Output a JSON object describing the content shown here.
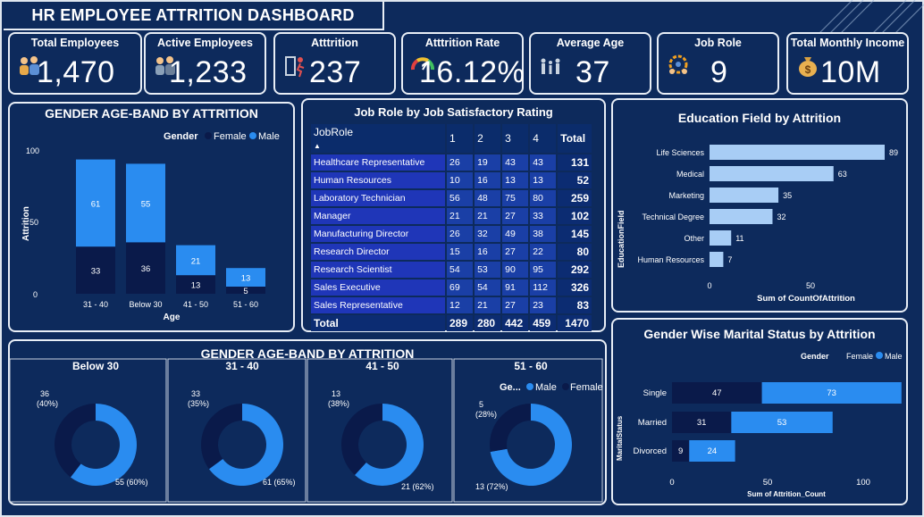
{
  "title": "HR EMPLOYEE ATTRITION DASHBOARD",
  "colors": {
    "background": "#0d2a5c",
    "female": "#0a1a4a",
    "male": "#2a8cf0",
    "edu_bar": "#a8cdf5"
  },
  "kpis": [
    {
      "label": "Total Employees",
      "value": "1,470",
      "icon": "people-icon"
    },
    {
      "label": "Active Employees",
      "value": "1,233",
      "icon": "people-icon"
    },
    {
      "label": "Atttrition",
      "value": "237",
      "icon": "exit-door-icon"
    },
    {
      "label": "Atttrition Rate",
      "value": "16.12%",
      "icon": "gauge-icon"
    },
    {
      "label": "Average Age",
      "value": "37",
      "icon": "family-icon"
    },
    {
      "label": "Job Role",
      "value": "9",
      "icon": "team-gear-icon"
    },
    {
      "label": "Total Monthly Income",
      "value": "10M",
      "icon": "money-bag-icon"
    }
  ],
  "age_band_chart": {
    "title": "GENDER AGE-BAND BY ATTRITION",
    "legend_title": "Gender",
    "legend": [
      "Female",
      "Male"
    ],
    "ylabel": "Attrition",
    "xlabel": "Age",
    "yticks": [
      "100",
      "50",
      "0"
    ]
  },
  "job_table": {
    "title": "Job Role by Job Satisfactory Rating",
    "headers": [
      "JobRole",
      "1",
      "2",
      "3",
      "4",
      "Total"
    ],
    "rows": [
      [
        "Healthcare Representative",
        "26",
        "19",
        "43",
        "43",
        "131"
      ],
      [
        "Human Resources",
        "10",
        "16",
        "13",
        "13",
        "52"
      ],
      [
        "Laboratory Technician",
        "56",
        "48",
        "75",
        "80",
        "259"
      ],
      [
        "Manager",
        "21",
        "21",
        "27",
        "33",
        "102"
      ],
      [
        "Manufacturing Director",
        "26",
        "32",
        "49",
        "38",
        "145"
      ],
      [
        "Research Director",
        "15",
        "16",
        "27",
        "22",
        "80"
      ],
      [
        "Research Scientist",
        "54",
        "53",
        "90",
        "95",
        "292"
      ],
      [
        "Sales Executive",
        "69",
        "54",
        "91",
        "112",
        "326"
      ],
      [
        "Sales Representative",
        "12",
        "21",
        "27",
        "23",
        "83"
      ]
    ],
    "total_row": [
      "Total",
      "289",
      "280",
      "442",
      "459",
      "1470"
    ]
  },
  "education_chart": {
    "title": "Education Field by Attrition",
    "ylabel": "EducationField",
    "xlabel": "Sum of CountOfAttrition",
    "xticks": [
      "0",
      "50"
    ]
  },
  "donut_section": {
    "title": "GENDER AGE-BAND BY ATTRITION",
    "legend_short": "Ge...",
    "legend": [
      "Male",
      "Female"
    ]
  },
  "marital_chart": {
    "title": "Gender Wise Marital Status by Attrition",
    "legend_title": "Gender",
    "legend": [
      "Female",
      "Male"
    ],
    "ylabel": "MaritalStatus",
    "xlabel": "Sum of Attrition_Count",
    "xticks": [
      "0",
      "50",
      "100"
    ]
  },
  "chart_data": [
    {
      "type": "bar",
      "title": "GENDER AGE-BAND BY ATTRITION",
      "stacked": true,
      "categories": [
        "31 - 40",
        "Below 30",
        "41 - 50",
        "51 - 60"
      ],
      "series": [
        {
          "name": "Female",
          "values": [
            33,
            36,
            13,
            5
          ]
        },
        {
          "name": "Male",
          "values": [
            61,
            55,
            21,
            13
          ]
        }
      ],
      "xlabel": "Age",
      "ylabel": "Attrition",
      "ylim": [
        0,
        100
      ]
    },
    {
      "type": "bar",
      "orientation": "horizontal",
      "title": "Education Field by Attrition",
      "categories": [
        "Life Sciences",
        "Medical",
        "Marketing",
        "Technical Degree",
        "Other",
        "Human Resources"
      ],
      "values": [
        89,
        63,
        35,
        32,
        11,
        7
      ],
      "xlabel": "Sum of CountOfAttrition",
      "ylabel": "EducationField",
      "xlim": [
        0,
        100
      ]
    },
    {
      "type": "pie",
      "title": "Below 30",
      "slices": [
        {
          "name": "Female",
          "value": 36,
          "label": "36",
          "pct": "(40%)"
        },
        {
          "name": "Male",
          "value": 55,
          "label": "55",
          "pct": "(60%)"
        }
      ]
    },
    {
      "type": "pie",
      "title": "31 - 40",
      "slices": [
        {
          "name": "Female",
          "value": 33,
          "label": "33",
          "pct": "(35%)"
        },
        {
          "name": "Male",
          "value": 61,
          "label": "61",
          "pct": "(65%)"
        }
      ]
    },
    {
      "type": "pie",
      "title": "41 - 50",
      "slices": [
        {
          "name": "Female",
          "value": 13,
          "label": "13",
          "pct": "(38%)"
        },
        {
          "name": "Male",
          "value": 21,
          "label": "21",
          "pct": "(62%)"
        }
      ]
    },
    {
      "type": "pie",
      "title": "51 - 60",
      "slices": [
        {
          "name": "Female",
          "value": 5,
          "label": "5",
          "pct": "(28%)"
        },
        {
          "name": "Male",
          "value": 13,
          "label": "13",
          "pct": "(72%)"
        }
      ]
    },
    {
      "type": "bar",
      "orientation": "horizontal",
      "stacked": true,
      "title": "Gender Wise Marital Status by Attrition",
      "categories": [
        "Single",
        "Married",
        "Divorced"
      ],
      "series": [
        {
          "name": "Female",
          "values": [
            47,
            31,
            9
          ]
        },
        {
          "name": "Male",
          "values": [
            73,
            53,
            24
          ]
        }
      ],
      "xlabel": "Sum of Attrition_Count",
      "ylabel": "MaritalStatus",
      "xlim": [
        0,
        120
      ]
    }
  ]
}
